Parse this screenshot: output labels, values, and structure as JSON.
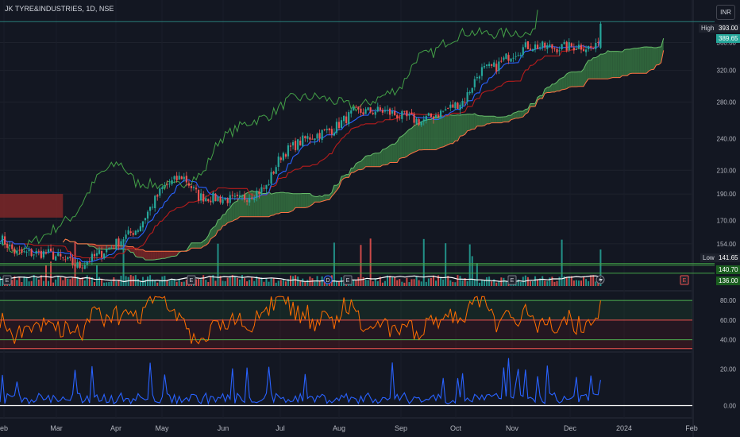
{
  "header": {
    "symbol_title": "JK TYRE&INDUSTRIES, 1D, NSE",
    "currency_button": "INR"
  },
  "price_tags": {
    "high_label": "High",
    "high_value": "393.00",
    "last_value": "389.65",
    "low_label": "Low",
    "low_value": "141.65",
    "line1_value": "140.70",
    "line2_value": "136.00"
  },
  "colors": {
    "up": "#26a69a",
    "down": "#ef5350",
    "tenkan": "#2962ff",
    "kijun": "#b71c1c",
    "chikou": "#43a047",
    "span_bull": "#3a7d44",
    "span_bear": "#8b2a2a",
    "rsi_line": "#ff6d00",
    "vol_white": "#ffffff",
    "osc_line": "#2962ff"
  },
  "chart_data": [
    {
      "type": "candlestick",
      "title": "JK TYRE&INDUSTRIES, 1D, NSE",
      "x_ticks": [
        "eb",
        "Mar",
        "Apr",
        "May",
        "Jun",
        "Jul",
        "Aug",
        "Sep",
        "Oct",
        "Nov",
        "Dec",
        "2024",
        "Feb"
      ],
      "y_ticks": [
        "360.00",
        "320.00",
        "280.00",
        "240.00",
        "210.00",
        "190.00",
        "170.00",
        "154.00"
      ],
      "ylim": [
        128,
        400
      ],
      "scale": "log",
      "approx_close_path": [
        [
          "eb",
          155
        ],
        [
          "Mar",
          150
        ],
        [
          "Apr",
          150
        ],
        [
          "May",
          195
        ],
        [
          "Jun",
          188
        ],
        [
          "Jul",
          225
        ],
        [
          "Aug",
          272
        ],
        [
          "Sep",
          265
        ],
        [
          "Oct",
          290
        ],
        [
          "Nov",
          345
        ],
        [
          "Dec",
          355
        ],
        [
          "last",
          389.65
        ]
      ],
      "high": 393.0,
      "low": 141.65,
      "last": 389.65,
      "indicators": [
        "Ichimoku Cloud",
        "Volume"
      ]
    },
    {
      "type": "line",
      "name": "RSI-style panel",
      "y_ticks": [
        "80.00",
        "60.00",
        "40.00"
      ],
      "ylim": [
        30,
        85
      ],
      "levels": [
        80,
        60,
        40
      ]
    },
    {
      "type": "line",
      "name": "Oscillator panel",
      "y_ticks": [
        "20.00",
        "0.00"
      ],
      "ylim": [
        -5,
        28
      ],
      "zero_line": 0
    }
  ]
}
